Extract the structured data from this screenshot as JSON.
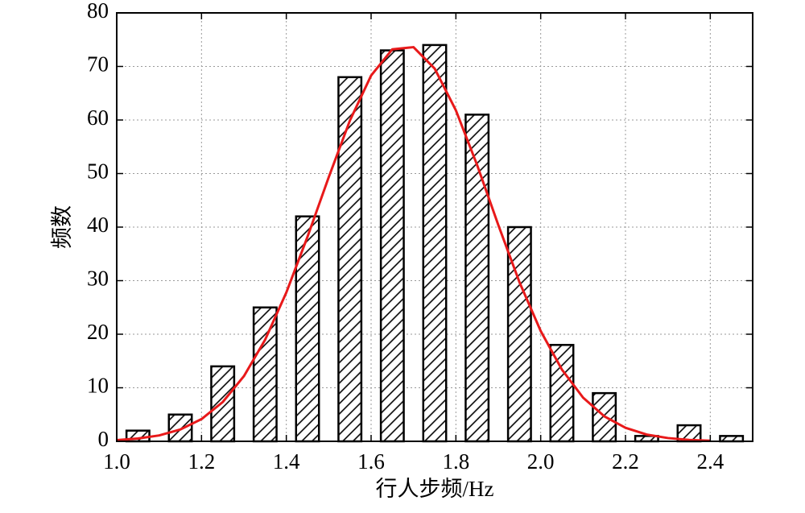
{
  "chart_data": {
    "type": "bar",
    "xlabel": "行人步频/Hz",
    "ylabel": "频数",
    "x": [
      1.05,
      1.15,
      1.25,
      1.35,
      1.45,
      1.55,
      1.65,
      1.75,
      1.85,
      1.95,
      2.05,
      2.15,
      2.25,
      2.35,
      2.45
    ],
    "values": [
      2,
      5,
      14,
      25,
      42,
      68,
      73,
      74,
      61,
      40,
      18,
      9,
      1,
      3,
      1
    ],
    "color": "#000000",
    "hatch": "diagonal",
    "xlim": [
      1.0,
      2.5
    ],
    "xticks": [
      {
        "value": 1.0,
        "label": "1.0"
      },
      {
        "value": 1.2,
        "label": "1.2"
      },
      {
        "value": 1.4,
        "label": "1.4"
      },
      {
        "value": 1.6,
        "label": "1.6"
      },
      {
        "value": 1.8,
        "label": "1.8"
      },
      {
        "value": 2.0,
        "label": "2.0"
      },
      {
        "value": 2.2,
        "label": "2.2"
      },
      {
        "value": 2.4,
        "label": "2.4"
      }
    ],
    "ylim": [
      0,
      80
    ],
    "yticks": [
      0,
      10,
      20,
      30,
      40,
      50,
      60,
      70,
      80
    ],
    "grid": true,
    "fit": {
      "type": "line",
      "color": "#e8191a",
      "x": [
        1.0,
        1.05,
        1.1,
        1.15,
        1.2,
        1.25,
        1.3,
        1.35,
        1.4,
        1.45,
        1.5,
        1.55,
        1.6,
        1.65,
        1.7,
        1.75,
        1.8,
        1.85,
        1.9,
        1.95,
        2.0,
        2.05,
        2.1,
        2.15,
        2.2,
        2.25,
        2.3,
        2.35,
        2.4
      ],
      "values": [
        0.23,
        0.52,
        1.1,
        2.21,
        4.15,
        7.33,
        12.17,
        18.97,
        27.78,
        38.2,
        49.3,
        59.9,
        68.3,
        73.2,
        73.6,
        69.6,
        61.8,
        51.6,
        40.4,
        29.7,
        20.6,
        13.4,
        8.16,
        4.68,
        2.52,
        1.27,
        0.61,
        0.27,
        0.11
      ]
    }
  }
}
